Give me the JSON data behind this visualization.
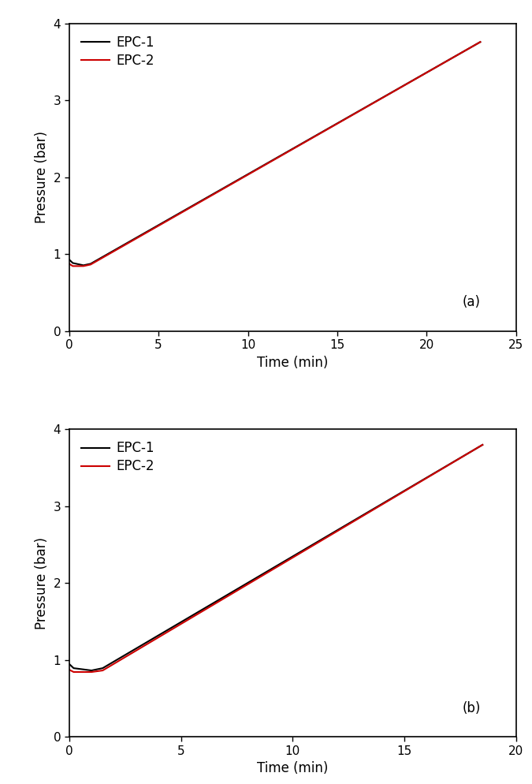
{
  "plot_a": {
    "label": "(a)",
    "xlim": [
      0,
      25
    ],
    "xticks": [
      0,
      5,
      10,
      15,
      20,
      25
    ],
    "ylim": [
      0,
      4
    ],
    "yticks": [
      0,
      1,
      2,
      3,
      4
    ],
    "epc1": {
      "color": "#000000",
      "x": [
        0,
        0.2,
        0.8,
        1.2,
        23.0
      ],
      "y": [
        0.93,
        0.885,
        0.855,
        0.875,
        3.76
      ]
    },
    "epc2": {
      "color": "#cc0000",
      "x": [
        0,
        0.2,
        0.8,
        1.2,
        23.0
      ],
      "y": [
        0.875,
        0.845,
        0.845,
        0.865,
        3.76
      ]
    }
  },
  "plot_b": {
    "label": "(b)",
    "xlim": [
      0,
      20
    ],
    "xticks": [
      0,
      5,
      10,
      15,
      20
    ],
    "ylim": [
      0,
      4
    ],
    "yticks": [
      0,
      1,
      2,
      3,
      4
    ],
    "epc1": {
      "color": "#000000",
      "x": [
        0,
        0.2,
        1.0,
        1.5,
        18.5
      ],
      "y": [
        0.95,
        0.895,
        0.865,
        0.895,
        3.8
      ]
    },
    "epc2": {
      "color": "#cc0000",
      "x": [
        0,
        0.2,
        1.0,
        1.5,
        18.5
      ],
      "y": [
        0.875,
        0.845,
        0.845,
        0.865,
        3.8
      ]
    }
  },
  "xlabel": "Time (min)",
  "ylabel": "Pressure (bar)",
  "legend_labels": [
    "EPC-1",
    "EPC-2"
  ],
  "legend_colors": [
    "#000000",
    "#cc0000"
  ],
  "line_width": 1.5,
  "font_size": 12,
  "label_font_size": 12,
  "tick_font_size": 11
}
